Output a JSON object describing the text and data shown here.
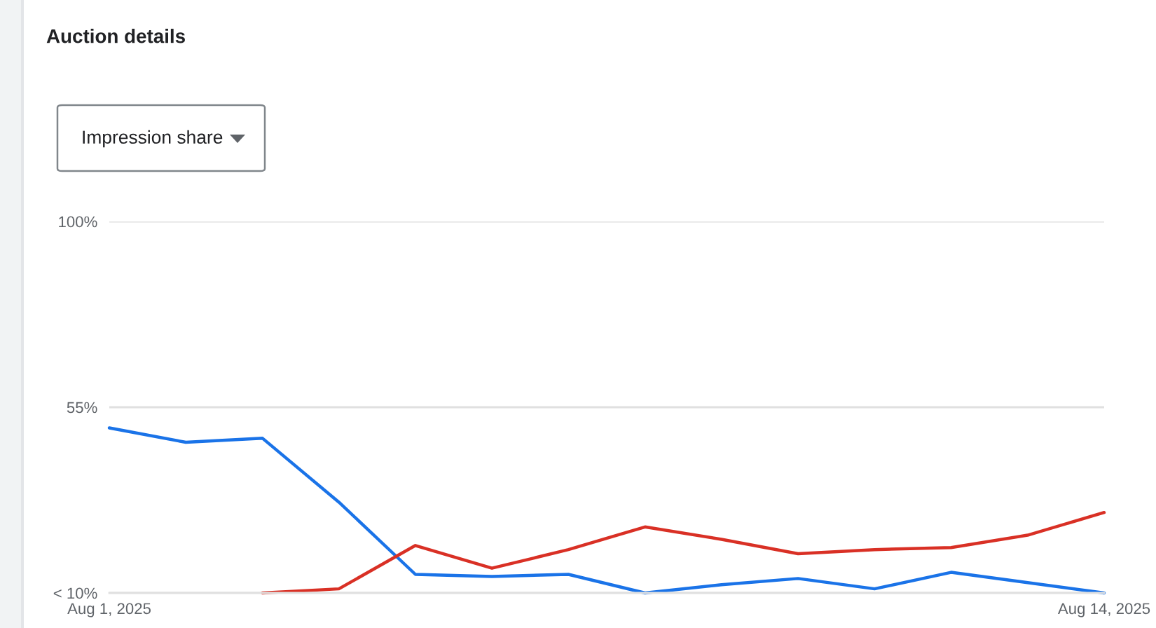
{
  "chart_data": {
    "type": "line",
    "title": "Auction details",
    "subtitle": "Impression share",
    "x": [
      "2025-08-01",
      "2025-08-02",
      "2025-08-03",
      "2025-08-04",
      "2025-08-05",
      "2025-08-06",
      "2025-08-07",
      "2025-08-08",
      "2025-08-09",
      "2025-08-10",
      "2025-08-11",
      "2025-08-12",
      "2025-08-13",
      "2025-08-14"
    ],
    "series": [
      {
        "color": "#1a73e8",
        "values": [
          50,
          46.5,
          47.5,
          32,
          14.5,
          14,
          14.5,
          10,
          12,
          13.5,
          11,
          15,
          12.5,
          10
        ]
      },
      {
        "color": "#d93025",
        "values": [
          null,
          null,
          10,
          11,
          21.5,
          16,
          20.5,
          26,
          23,
          19.5,
          20.5,
          21,
          24,
          29.5
        ]
      }
    ],
    "xlim": [
      "2025-08-01",
      "2025-08-14"
    ],
    "xticks": [
      {
        "value": "2025-08-01",
        "label": "Aug 1, 2025"
      },
      {
        "value": "2025-08-14",
        "label": "Aug 14, 2025"
      }
    ],
    "ylim": [
      10,
      100
    ],
    "yticks": [
      {
        "value": 10,
        "label": "< 10%"
      },
      {
        "value": 55,
        "label": "55%"
      },
      {
        "value": 100,
        "label": "100%"
      }
    ],
    "grid": "y",
    "line_style": "solid"
  }
}
